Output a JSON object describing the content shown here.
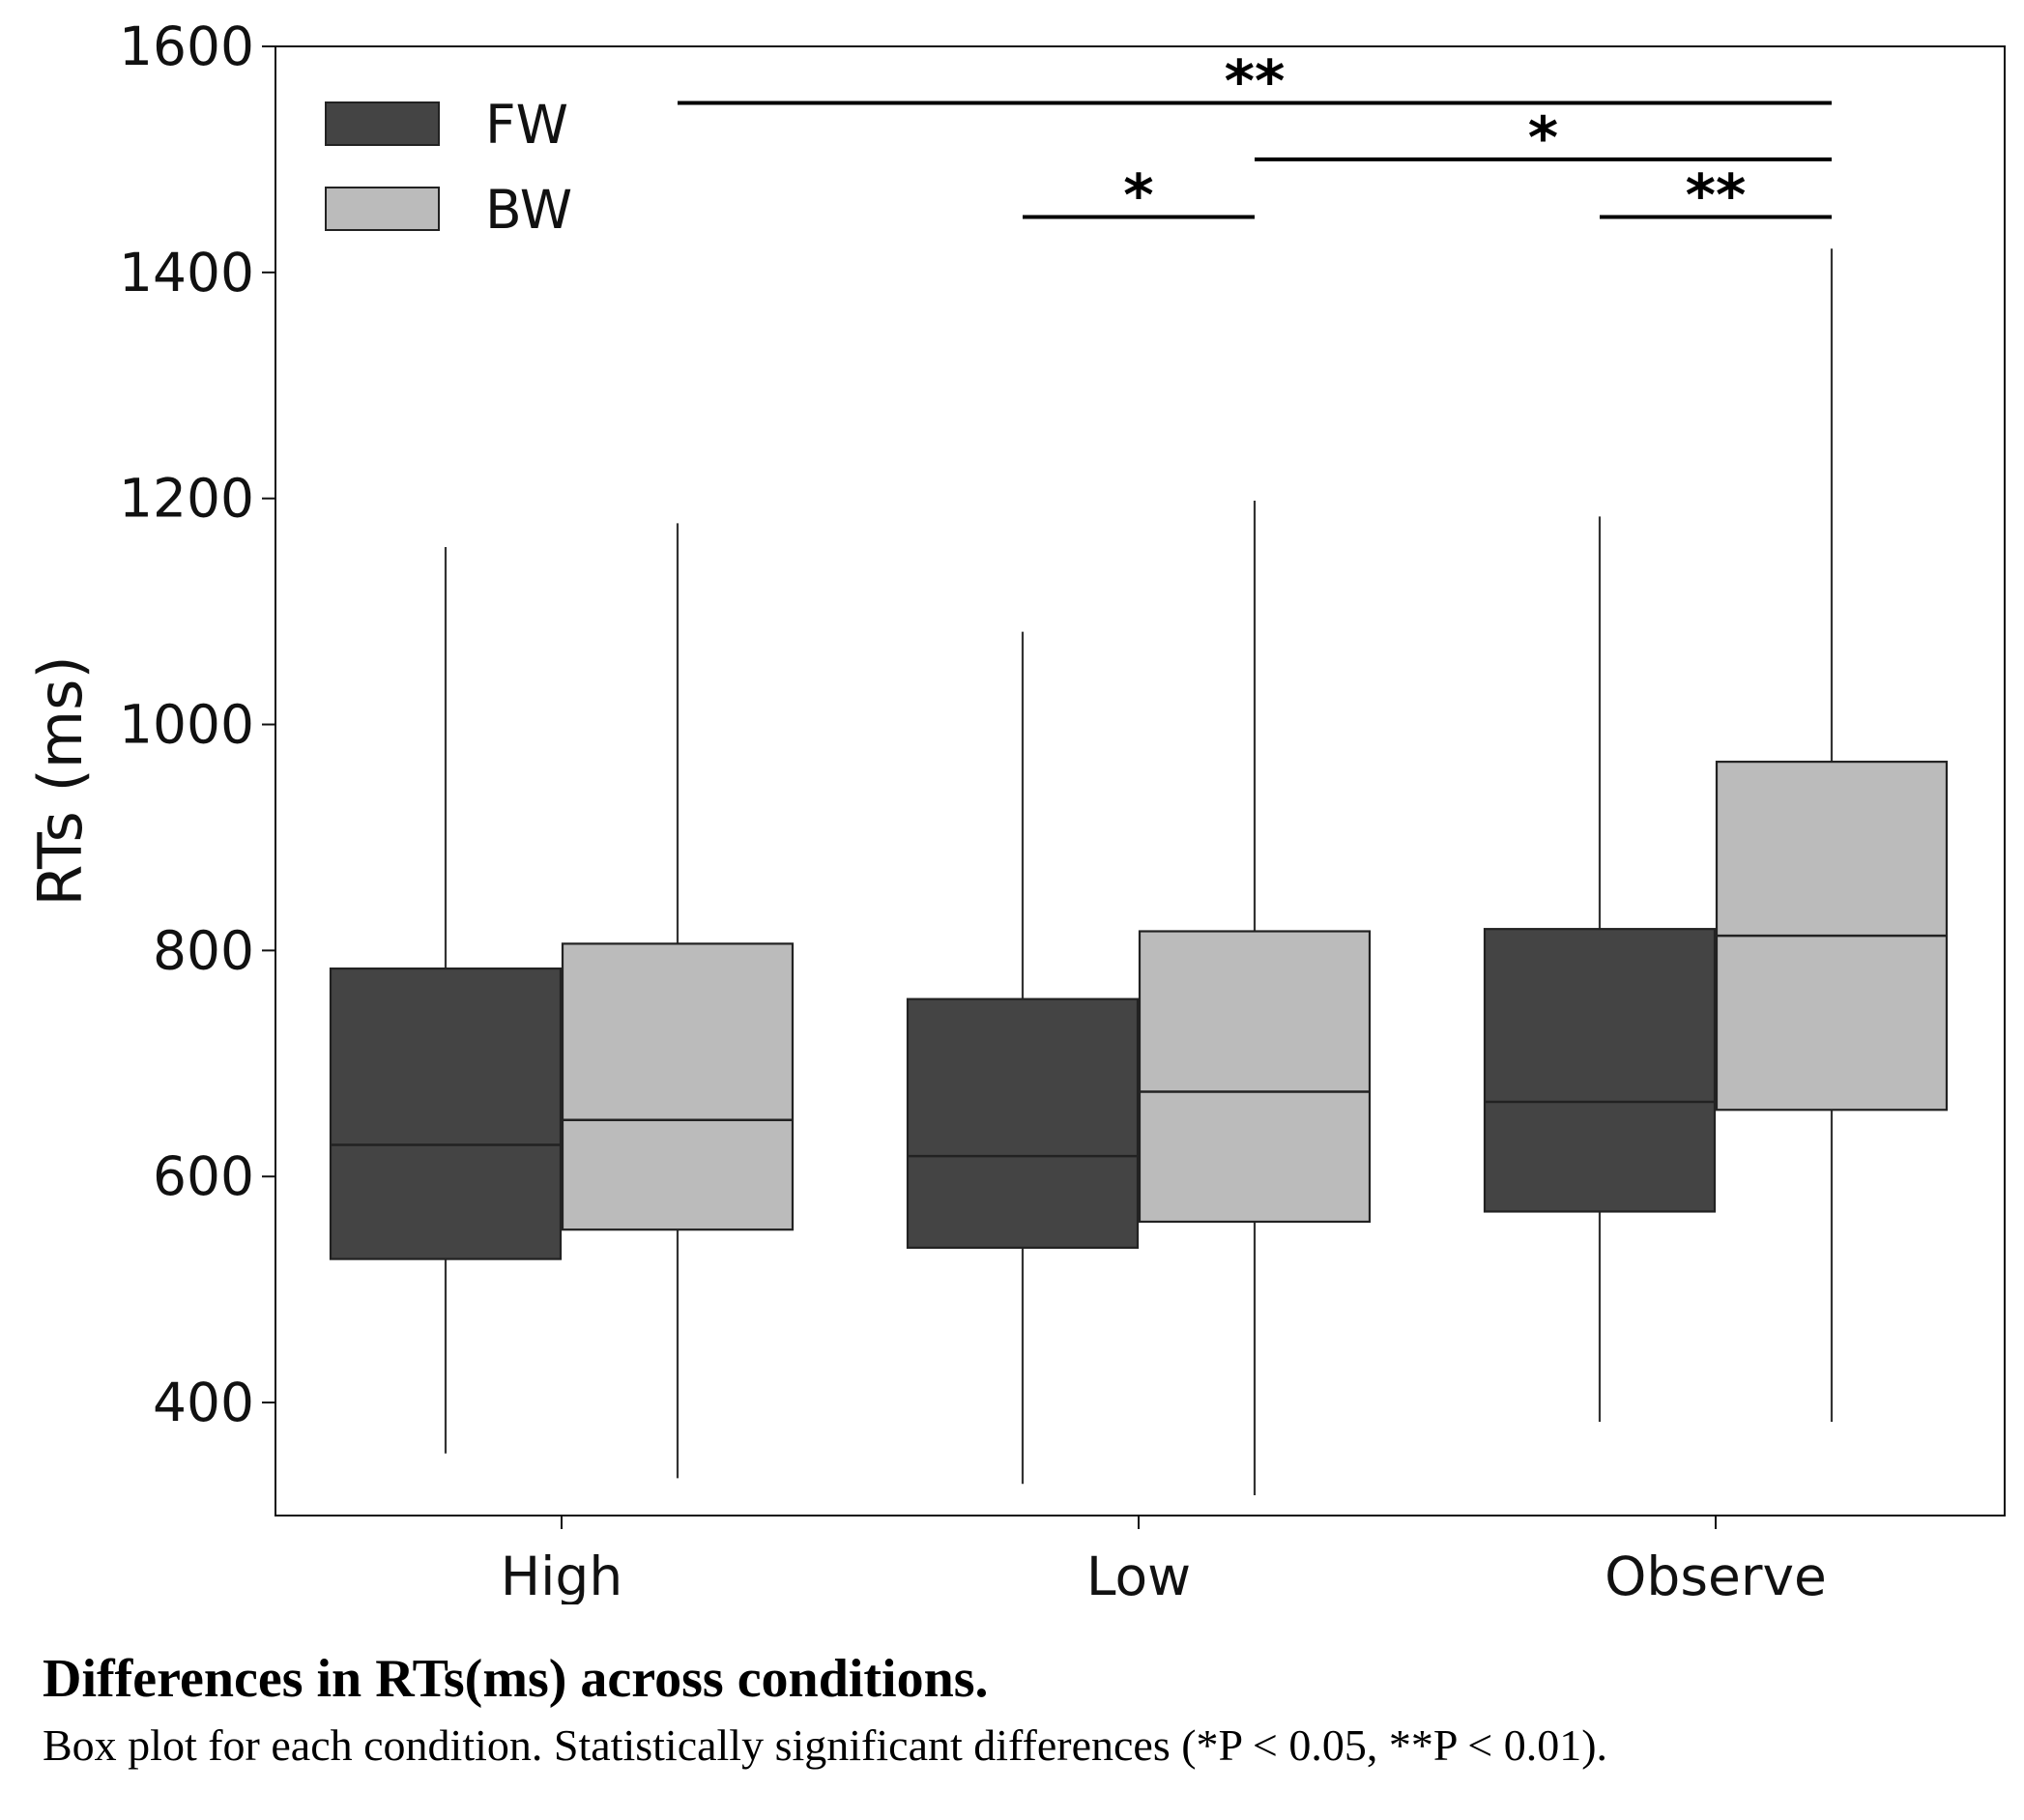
{
  "chart_data": {
    "type": "box",
    "categories": [
      "High",
      "Low",
      "Observe"
    ],
    "ylabel": "RTs (ms)",
    "xlabel": "",
    "ylim": [
      300,
      1600
    ],
    "yticks": [
      400,
      600,
      800,
      1000,
      1200,
      1400,
      1600
    ],
    "legend_position": "top-left",
    "series": [
      {
        "name": "FW",
        "color": "#444444",
        "boxes": [
          {
            "whislo": 355,
            "q1": 527,
            "med": 628,
            "q3": 784,
            "whishi": 1157
          },
          {
            "whislo": 328,
            "q1": 537,
            "med": 618,
            "q3": 757,
            "whishi": 1082
          },
          {
            "whislo": 383,
            "q1": 569,
            "med": 666,
            "q3": 819,
            "whishi": 1184
          }
        ]
      },
      {
        "name": "BW",
        "color": "#bbbbbb",
        "boxes": [
          {
            "whislo": 333,
            "q1": 553,
            "med": 650,
            "q3": 806,
            "whishi": 1178
          },
          {
            "whislo": 318,
            "q1": 560,
            "med": 675,
            "q3": 817,
            "whishi": 1198
          },
          {
            "whislo": 383,
            "q1": 659,
            "med": 813,
            "q3": 967,
            "whishi": 1421
          }
        ]
      }
    ],
    "significance": [
      {
        "from": [
          0,
          "BW"
        ],
        "to": [
          2,
          "BW"
        ],
        "y": 1550,
        "label": "**"
      },
      {
        "from": [
          1,
          "BW"
        ],
        "to": [
          2,
          "BW"
        ],
        "y": 1500,
        "label": "*"
      },
      {
        "from": [
          1,
          "FW"
        ],
        "to": [
          1,
          "BW"
        ],
        "y": 1449,
        "label": "*"
      },
      {
        "from": [
          2,
          "FW"
        ],
        "to": [
          2,
          "BW"
        ],
        "y": 1449,
        "label": "**"
      }
    ]
  },
  "caption": {
    "title": "Differences in RTs(ms) across conditions.",
    "text": "Box plot for each condition. Statistically significant differences (*P < 0.05, **P < 0.01)."
  }
}
